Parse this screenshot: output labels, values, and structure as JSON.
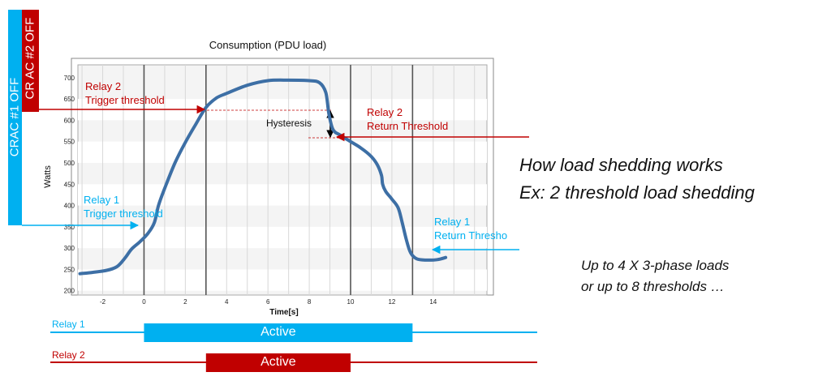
{
  "bars": {
    "crac1": "CRAC #1  OFF",
    "crac2": "CR AC #2 OFF"
  },
  "chart_data": {
    "type": "line",
    "title": "Consumption  (PDU load)",
    "xlabel": "Time[s]",
    "ylabel": "Watts",
    "xlim": [
      -3.2,
      16.6
    ],
    "ylim": [
      190,
      730
    ],
    "xticks": [
      -2,
      0,
      2,
      4,
      6,
      8,
      10,
      12,
      14
    ],
    "yticks": [
      200,
      250,
      300,
      350,
      400,
      450,
      500,
      550,
      600,
      650,
      700
    ],
    "grid": true,
    "series": [
      {
        "x": [
          -3.1,
          -2.5,
          -1.8,
          -1.3,
          -0.9,
          -0.6,
          -0.2,
          0.2,
          0.5,
          0.7,
          1.0,
          1.5,
          2.0,
          2.5,
          3.0,
          3.5,
          4.0,
          5.0,
          6.0,
          7.0,
          8.0,
          8.5,
          8.8,
          8.95,
          9.15,
          9.5,
          10.0,
          10.5,
          11.0,
          11.3,
          11.5,
          11.55,
          11.7,
          12.0,
          12.3,
          12.5,
          12.7,
          12.9,
          13.2,
          13.7,
          14.2,
          14.6
        ],
        "y": [
          240,
          243,
          248,
          257,
          278,
          298,
          315,
          335,
          360,
          400,
          440,
          500,
          548,
          590,
          630,
          652,
          663,
          682,
          693,
          694,
          693,
          688,
          665,
          615,
          578,
          565,
          550,
          535,
          515,
          495,
          470,
          450,
          433,
          415,
          395,
          360,
          320,
          290,
          275,
          272,
          273,
          278
        ]
      }
    ],
    "vlines": [
      0,
      3,
      10,
      13
    ],
    "annotations": {
      "relay2_trigger": [
        "Relay 2",
        "Trigger threshold"
      ],
      "relay2_return": [
        "Relay 2",
        "Return Threshold"
      ],
      "relay1_trigger": [
        "Relay 1",
        "Trigger threshold"
      ],
      "relay1_return": [
        "Relay 1",
        "Return Thresho"
      ],
      "hysteresis": "Hysteresis"
    }
  },
  "headline": {
    "line1": "How load shedding works",
    "line2": "Ex: 2 threshold load shedding"
  },
  "subtext": {
    "line1": "Up to 4 X 3-phase loads",
    "line2": "or up to 8 thresholds …"
  },
  "relays": {
    "relay1": {
      "label": "Relay 1",
      "state": "Active",
      "on": 0,
      "off": 13
    },
    "relay2": {
      "label": "Relay 2",
      "state": "Active",
      "on": 3,
      "off": 10
    }
  },
  "colors": {
    "blue": "#00b0f0",
    "red": "#c00000",
    "curve": "#3d6fa5"
  }
}
